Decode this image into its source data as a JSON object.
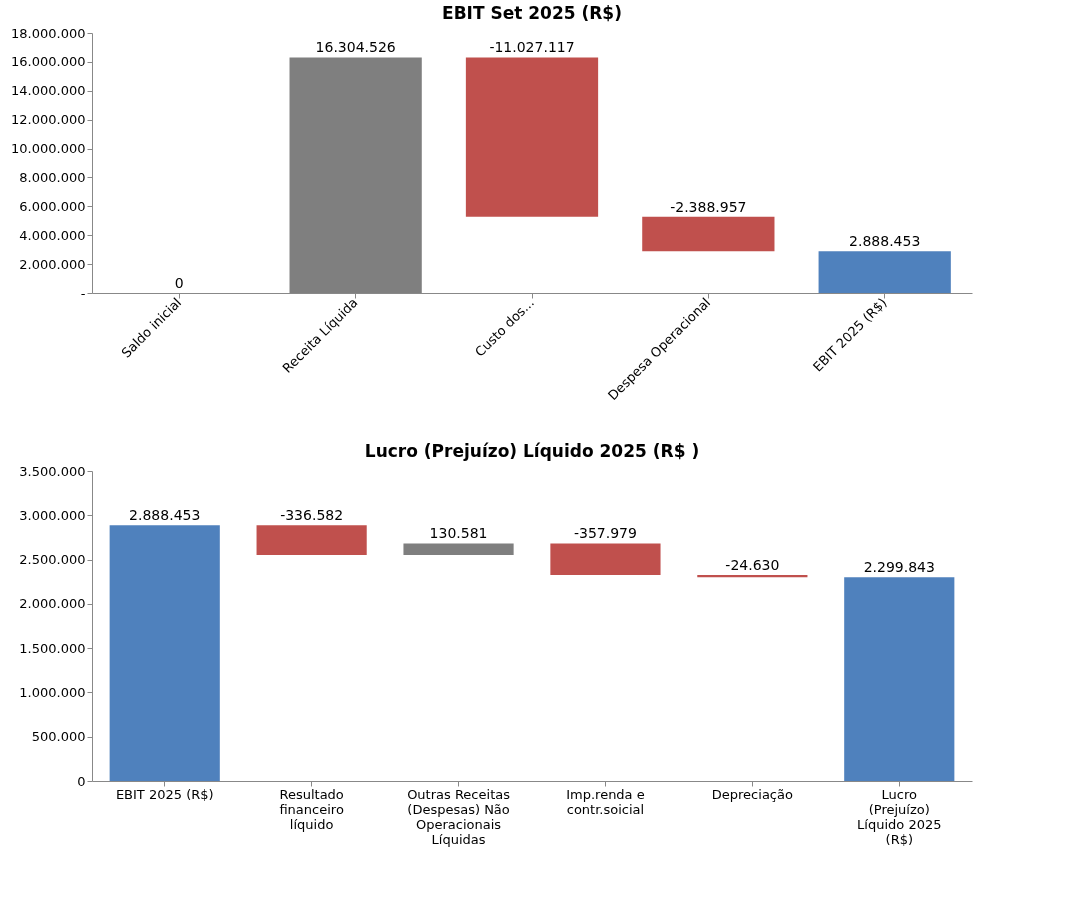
{
  "chart_data": [
    {
      "type": "bar",
      "title": "EBIT Set 2025 (R$)",
      "categories": [
        "Saldo inicial",
        "Receita Líquida",
        "Custo dos...",
        "Despesa Operacional",
        "EBIT 2025 (R$)"
      ],
      "values": [
        0,
        16304526,
        -11027117,
        -2388957,
        2888453
      ],
      "base": [
        null,
        null,
        16304526,
        5277409,
        null
      ],
      "colors": [
        "#7f7f7f",
        "#7f7f7f",
        "#c0504d",
        "#c0504d",
        "#4f81bd"
      ],
      "value_labels": [
        "0",
        "16.304.526",
        "-11.027.117",
        "-2.388.957",
        "2.888.453"
      ],
      "ylim": [
        0,
        18000000
      ],
      "yticks": [
        {
          "value": 0,
          "label": "-"
        },
        {
          "value": 2000000,
          "label": "2.000.000"
        },
        {
          "value": 4000000,
          "label": "4.000.000"
        },
        {
          "value": 6000000,
          "label": "6.000.000"
        },
        {
          "value": 8000000,
          "label": "8.000.000"
        },
        {
          "value": 10000000,
          "label": "10.000.000"
        },
        {
          "value": 12000000,
          "label": "12.000.000"
        },
        {
          "value": 14000000,
          "label": "14.000.000"
        },
        {
          "value": 16000000,
          "label": "16.000.000"
        },
        {
          "value": 18000000,
          "label": "18.000.000"
        }
      ]
    },
    {
      "type": "bar",
      "title": "Lucro (Prejuízo) Líquido 2025 (R$ )",
      "categories": [
        "EBIT 2025 (R$)",
        "Resultado financeiro líquido",
        "Outras Receitas (Despesas) Não Operacionais Líquidas",
        "Imp.renda e contr.soicial",
        "Depreciação",
        "Lucro (Prejuízo) Líquido 2025 (R$)"
      ],
      "values": [
        2888453,
        -336582,
        130581,
        -357979,
        -24630,
        2299843
      ],
      "base": [
        null,
        2888453,
        2551871,
        2682452,
        2324473,
        null
      ],
      "colors": [
        "#4f81bd",
        "#c0504d",
        "#7f7f7f",
        "#c0504d",
        "#c0504d",
        "#4f81bd"
      ],
      "value_labels": [
        "2.888.453",
        "-336.582",
        "130.581",
        "-357.979",
        "-24.630",
        "2.299.843"
      ],
      "ylim": [
        0,
        3500000
      ],
      "yticks": [
        {
          "value": 0,
          "label": "0"
        },
        {
          "value": 500000,
          "label": "500.000"
        },
        {
          "value": 1000000,
          "label": "1.000.000"
        },
        {
          "value": 1500000,
          "label": "1.500.000"
        },
        {
          "value": 2000000,
          "label": "2.000.000"
        },
        {
          "value": 2500000,
          "label": "2.500.000"
        },
        {
          "value": 3000000,
          "label": "3.000.000"
        },
        {
          "value": 3500000,
          "label": "3.500.000"
        }
      ]
    }
  ]
}
